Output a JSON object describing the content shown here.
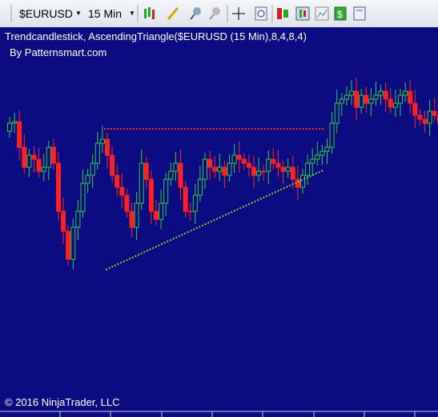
{
  "toolbar": {
    "instrument": "$EURUSD",
    "interval": "15 Min"
  },
  "chart": {
    "title": "Trendcandlestick,  AscendingTriangle($EURUSD (15 Min),8,4,8,4)",
    "subtitle": "By Patternsmart.com",
    "copyright": "© 2016 NinjaTrader, LLC"
  }
}
